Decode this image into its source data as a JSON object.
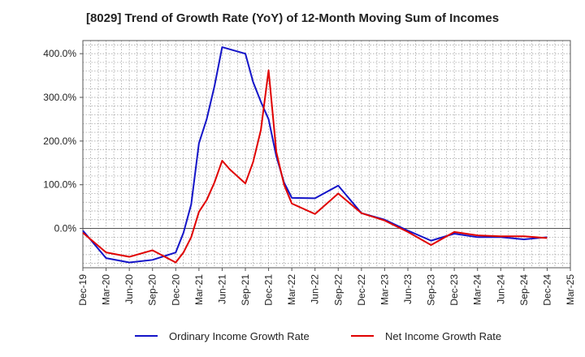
{
  "chart_data": {
    "type": "line",
    "title": "[8029]  Trend of Growth Rate (YoY) of 12-Month Moving Sum of Incomes",
    "xlabel": "",
    "ylabel": "",
    "x_ticks": [
      "Dec-19",
      "Mar-20",
      "Jun-20",
      "Sep-20",
      "Dec-20",
      "Mar-21",
      "Jun-21",
      "Sep-21",
      "Dec-21",
      "Mar-22",
      "Jun-22",
      "Sep-22",
      "Dec-22",
      "Mar-23",
      "Jun-23",
      "Sep-23",
      "Dec-23",
      "Mar-24",
      "Jun-24",
      "Sep-24",
      "Dec-24",
      "Mar-25"
    ],
    "y_ticks": [
      0,
      100,
      200,
      300,
      400
    ],
    "y_tick_labels": [
      "0.0%",
      "100.0%",
      "200.0%",
      "300.0%",
      "400.0%"
    ],
    "ylim": [
      -90,
      430
    ],
    "grid": true,
    "legend_position": "bottom",
    "series": [
      {
        "name": "Ordinary Income Growth Rate",
        "color": "#1414c8",
        "points": [
          [
            0,
            -5
          ],
          [
            3,
            -68
          ],
          [
            6,
            -78
          ],
          [
            9,
            -72
          ],
          [
            12,
            -55
          ],
          [
            13,
            -10
          ],
          [
            14,
            55
          ],
          [
            15,
            195
          ],
          [
            16,
            250
          ],
          [
            17,
            325
          ],
          [
            18,
            415
          ],
          [
            21,
            400
          ],
          [
            22,
            335
          ],
          [
            23,
            290
          ],
          [
            24,
            250
          ],
          [
            25,
            165
          ],
          [
            26,
            105
          ],
          [
            27,
            70
          ],
          [
            30,
            69
          ],
          [
            33,
            98
          ],
          [
            36,
            35
          ],
          [
            39,
            20
          ],
          [
            42,
            -5
          ],
          [
            45,
            -28
          ],
          [
            48,
            -12
          ],
          [
            51,
            -20
          ],
          [
            54,
            -20
          ],
          [
            57,
            -25
          ],
          [
            60,
            -20
          ]
        ]
      },
      {
        "name": "Net Income Growth Rate",
        "color": "#e00000",
        "points": [
          [
            0,
            -10
          ],
          [
            3,
            -55
          ],
          [
            6,
            -65
          ],
          [
            9,
            -50
          ],
          [
            12,
            -78
          ],
          [
            13,
            -55
          ],
          [
            14,
            -20
          ],
          [
            15,
            38
          ],
          [
            16,
            65
          ],
          [
            17,
            105
          ],
          [
            18,
            155
          ],
          [
            19,
            135
          ],
          [
            21,
            103
          ],
          [
            22,
            152
          ],
          [
            23,
            225
          ],
          [
            24,
            362
          ],
          [
            25,
            175
          ],
          [
            26,
            100
          ],
          [
            27,
            57
          ],
          [
            30,
            33
          ],
          [
            33,
            80
          ],
          [
            36,
            35
          ],
          [
            39,
            18
          ],
          [
            42,
            -8
          ],
          [
            45,
            -38
          ],
          [
            48,
            -8
          ],
          [
            51,
            -16
          ],
          [
            54,
            -18
          ],
          [
            57,
            -18
          ],
          [
            60,
            -22
          ]
        ]
      }
    ]
  }
}
